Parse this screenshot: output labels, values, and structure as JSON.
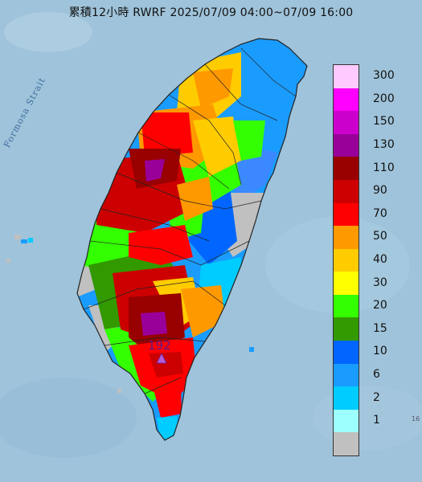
{
  "title": "累積12小時 RWRF 2025/07/09 04:00~07/09 16:00",
  "sea_label": "Formosa Strait",
  "peak": {
    "value": "192",
    "marker": "triangle-marker"
  },
  "corner_mark": "16",
  "legend": {
    "items": [
      {
        "label": "300",
        "color": "#ffcaff"
      },
      {
        "label": "200",
        "color": "#ff00ff"
      },
      {
        "label": "150",
        "color": "#cc00cc"
      },
      {
        "label": "130",
        "color": "#990099"
      },
      {
        "label": "110",
        "color": "#990000"
      },
      {
        "label": "90",
        "color": "#cc0000"
      },
      {
        "label": "70",
        "color": "#ff0000"
      },
      {
        "label": "50",
        "color": "#ff9900"
      },
      {
        "label": "40",
        "color": "#ffcc00"
      },
      {
        "label": "30",
        "color": "#ffff00"
      },
      {
        "label": "20",
        "color": "#33ff00"
      },
      {
        "label": "15",
        "color": "#339900"
      },
      {
        "label": "10",
        "color": "#0066ff"
      },
      {
        "label": "6",
        "color": "#1a9cff"
      },
      {
        "label": "2",
        "color": "#00ccff"
      },
      {
        "label": "1",
        "color": "#9effff"
      },
      {
        "label": "",
        "color": "#c0c0c0"
      }
    ]
  },
  "colors": {
    "sea": "#9fc3da",
    "land_none": "#c0c0c0",
    "boundaries": "#222222",
    "peak_marker": "#b15bd6"
  }
}
